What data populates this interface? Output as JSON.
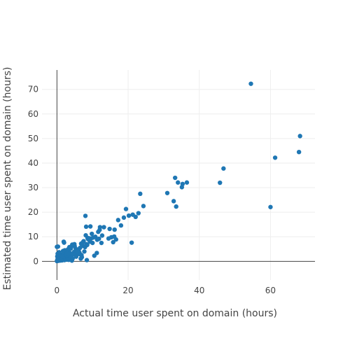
{
  "chart_data": {
    "type": "scatter",
    "xlabel": "Actual time user spent on domain (hours)",
    "ylabel": "Estimated time user spent on domain (hours)",
    "xlim": [
      -4.2,
      72.5
    ],
    "ylim": [
      -7.6,
      77.9
    ],
    "xticks": [
      "0",
      "20",
      "40",
      "60"
    ],
    "yticks": [
      "0",
      "10",
      "20",
      "30",
      "40",
      "50",
      "60",
      "70"
    ],
    "grid": true,
    "marker_color": "#1f77b4",
    "x": [
      0.0,
      0.1,
      0.2,
      0.3,
      0.5,
      0.6,
      0.8,
      1.0,
      1.2,
      0.1,
      0.4,
      0.7,
      1.1,
      1.4,
      0.2,
      0.9,
      1.6,
      2.0,
      2.3,
      2.6,
      1.8,
      2.9,
      3.2,
      3.6,
      4.0,
      0.5,
      1.3,
      2.1,
      2.7,
      3.4,
      4.4,
      4.8,
      5.1,
      5.5,
      5.9,
      1.5,
      2.4,
      3.0,
      3.8,
      4.6,
      5.3,
      6.1,
      0.3,
      1.9,
      3.3,
      4.2,
      6.5,
      6.8,
      7.2,
      7.5,
      7.9,
      8.3,
      8.7,
      9.1,
      9.6,
      10.2,
      10.8,
      11.3,
      5.0,
      5.7,
      6.3,
      6.9,
      7.7,
      8.5,
      9.3,
      10.0,
      3.9,
      4.7,
      5.4,
      6.0,
      6.6,
      7.3,
      2.2,
      2.8,
      3.5,
      4.3,
      0.0,
      1.7,
      8.1,
      8.6,
      9.8,
      11.6,
      12.1,
      12.7,
      12.5,
      11.8,
      8.4,
      7.0,
      2.0,
      6.2,
      9.4,
      10.5,
      11.2,
      8.0,
      6.7,
      4.9,
      5.8,
      3.1,
      1.2,
      0.6,
      14.5,
      15.3,
      15.8,
      16.1,
      16.6,
      17.2,
      18.0,
      18.8,
      19.4,
      20.2,
      21.3,
      22.1,
      22.9,
      23.4,
      24.3,
      21.0,
      16.2,
      14.8,
      13.2,
      12.0,
      8.2,
      9.0,
      31.0,
      32.8,
      33.5,
      33.2,
      34.0,
      35.1,
      35.3,
      36.5,
      45.8,
      46.8,
      54.5,
      60.0,
      61.3,
      68.0,
      68.3
    ],
    "y": [
      0.1,
      0.5,
      1.0,
      0.2,
      1.5,
      0.8,
      0.3,
      1.2,
      0.6,
      2.0,
      2.5,
      1.8,
      2.2,
      0.4,
      3.1,
      2.8,
      1.0,
      1.6,
      2.4,
      0.7,
      3.0,
      2.0,
      1.4,
      3.5,
      2.2,
      0.9,
      1.2,
      0.5,
      2.6,
      3.3,
      1.1,
      3.8,
      2.7,
      4.1,
      3.0,
      2.1,
      4.0,
      0.8,
      1.5,
      2.9,
      5.0,
      4.4,
      6.0,
      8.0,
      0.6,
      0.3,
      5.5,
      7.2,
      6.3,
      8.2,
      5.8,
      7.0,
      9.1,
      8.6,
      9.3,
      9.7,
      10.0,
      8.8,
      6.1,
      4.8,
      3.6,
      2.5,
      4.0,
      6.7,
      8.0,
      7.5,
      5.2,
      6.4,
      1.9,
      4.6,
      2.8,
      7.8,
      4.5,
      3.2,
      5.8,
      6.8,
      5.9,
      4.2,
      10.6,
      9.5,
      11.2,
      12.0,
      13.9,
      10.5,
      7.5,
      9.2,
      0.5,
      1.7,
      7.6,
      3.2,
      14.2,
      2.3,
      3.4,
      18.5,
      1.1,
      7.0,
      3.9,
      4.9,
      0.4,
      3.7,
      9.3,
      9.8,
      7.8,
      10.1,
      8.9,
      16.8,
      14.6,
      17.8,
      21.3,
      18.6,
      19.0,
      18.1,
      19.6,
      27.5,
      22.5,
      7.6,
      12.9,
      13.2,
      13.9,
      12.8,
      14.1,
      9.4,
      27.8,
      24.5,
      22.3,
      34.0,
      32.1,
      30.2,
      31.5,
      32.1,
      32.0,
      37.8,
      72.3,
      22.1,
      42.2,
      44.5,
      51.0
    ]
  }
}
